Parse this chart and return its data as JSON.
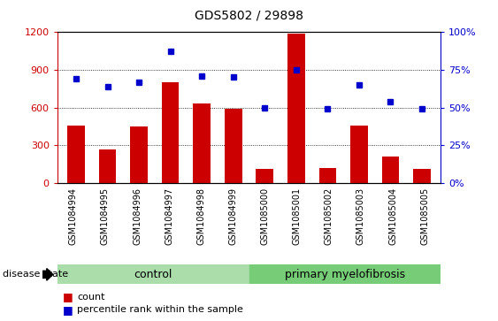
{
  "title": "GDS5802 / 29898",
  "samples": [
    "GSM1084994",
    "GSM1084995",
    "GSM1084996",
    "GSM1084997",
    "GSM1084998",
    "GSM1084999",
    "GSM1085000",
    "GSM1085001",
    "GSM1085002",
    "GSM1085003",
    "GSM1085004",
    "GSM1085005"
  ],
  "counts": [
    460,
    270,
    450,
    800,
    630,
    590,
    110,
    1190,
    120,
    460,
    210,
    110
  ],
  "percentile_ranks": [
    69,
    64,
    67,
    87,
    71,
    70,
    50,
    75,
    49,
    65,
    54,
    49
  ],
  "groups": [
    "control",
    "control",
    "control",
    "control",
    "control",
    "control",
    "primary myelofibrosis",
    "primary myelofibrosis",
    "primary myelofibrosis",
    "primary myelofibrosis",
    "primary myelofibrosis",
    "primary myelofibrosis"
  ],
  "bar_color": "#cc0000",
  "dot_color": "#0000cc",
  "left_ylim": [
    0,
    1200
  ],
  "left_yticks": [
    0,
    300,
    600,
    900,
    1200
  ],
  "right_ylim": [
    0,
    100
  ],
  "right_yticks": [
    0,
    25,
    50,
    75,
    100
  ],
  "group_colors": {
    "control": "#aaddaa",
    "primary myelofibrosis": "#77cc77"
  },
  "tick_area_color": "#cccccc",
  "title_fontsize": 10,
  "tick_fontsize": 7,
  "group_fontsize": 9,
  "legend_fontsize": 8
}
